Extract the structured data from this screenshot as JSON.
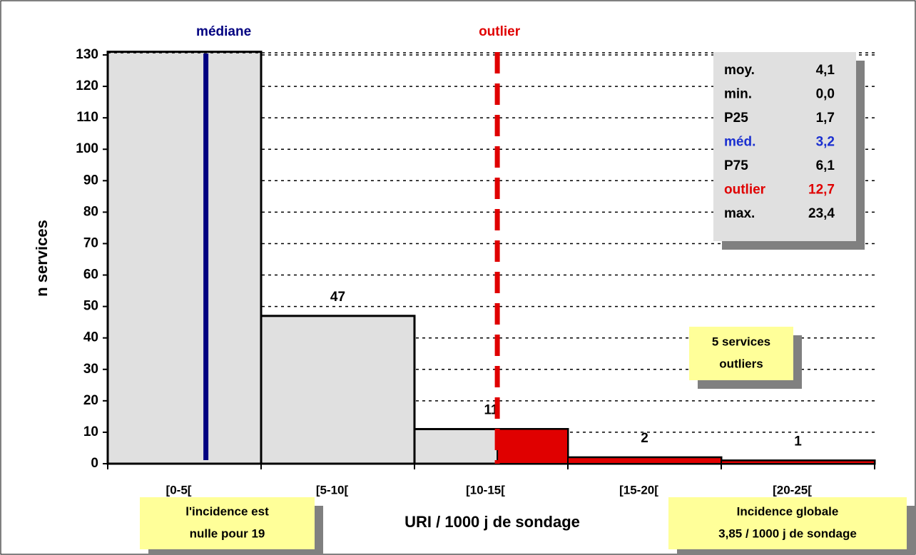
{
  "chart_data": {
    "type": "histogram",
    "bins": [
      0,
      5,
      10,
      15,
      20,
      25
    ],
    "values": [
      131,
      47,
      11,
      2,
      1
    ],
    "value_labels": [
      null,
      "47",
      "11",
      "2",
      "1"
    ],
    "categories": [
      "[0-5[",
      "[5-10[",
      "[10-15[",
      "[15-20[",
      "[20-25["
    ],
    "x_label": "URI / 1000 j de sondage",
    "y_label": "n services",
    "ylim": [
      0,
      130
    ],
    "yticks": [
      0,
      10,
      20,
      30,
      40,
      50,
      60,
      70,
      80,
      90,
      100,
      110,
      120,
      130
    ],
    "grid": true,
    "bar_color": "#e0e0e0",
    "median": 3.2,
    "median_label": "médiane",
    "median_color": "#000080",
    "outlier": 12.7,
    "outlier_label": "outlier",
    "outlier_color": "#e00000",
    "stats": [
      [
        "moy.",
        "4,1"
      ],
      [
        "min.",
        "0,0"
      ],
      [
        "P25",
        "1,7"
      ],
      [
        "méd.",
        "3,2"
      ],
      [
        "P75",
        "6,1"
      ],
      [
        "outlier",
        "12,7"
      ],
      [
        "max.",
        "23,4"
      ]
    ],
    "stats_colors": [
      "#000000",
      "#000000",
      "#000000",
      "#1a2fd0",
      "#000000",
      "#e00000",
      "#000000"
    ],
    "notes": [
      [
        "5 services",
        "outliers"
      ],
      [
        "l'incidence est",
        "nulle pour 19"
      ],
      [
        "Incidence globale",
        "3,85 / 1000 j de sondage"
      ]
    ]
  }
}
